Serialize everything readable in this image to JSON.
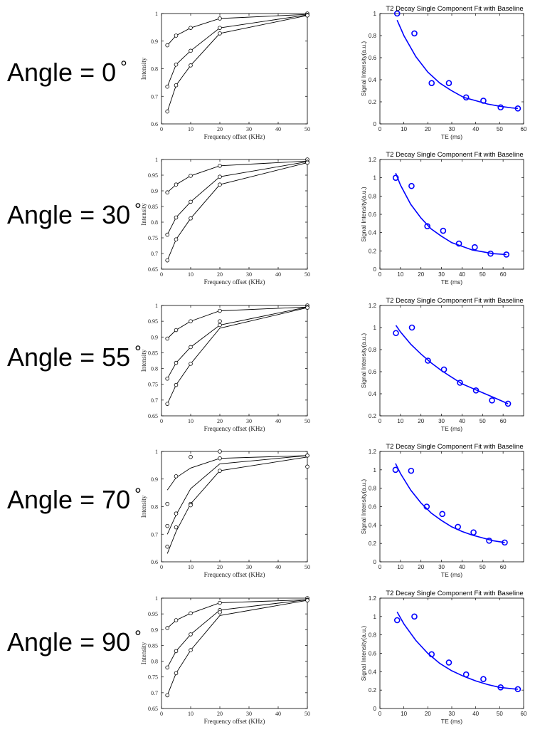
{
  "rows": [
    {
      "label": "Angle = 0",
      "degree_symbol": "°"
    },
    {
      "label": "Angle = 30",
      "degree_symbol": "°"
    },
    {
      "label": "Angle = 55",
      "degree_symbol": "°"
    },
    {
      "label": "Angle = 70",
      "degree_symbol": "°"
    },
    {
      "label": "Angle = 90",
      "degree_symbol": "°"
    }
  ],
  "colors": {
    "left_marker": "#000000",
    "right_marker": "#0000ff",
    "axis": "#000000"
  },
  "chart_data": [
    {
      "type": "line",
      "panel": "intensity-0",
      "xlabel": "Frequency offset (KHz)",
      "ylabel": "Intensity",
      "xlim": [
        0,
        50
      ],
      "ylim": [
        0.6,
        1
      ],
      "xticks": [
        0,
        10,
        20,
        30,
        40,
        50
      ],
      "xticklabels": [
        "0",
        "10",
        "20",
        "30",
        "40",
        "50"
      ],
      "yticks": [
        0.6,
        0.7,
        0.8,
        0.9,
        1
      ],
      "yticklabels": [
        "0.6",
        "0.7",
        "0.8",
        "0.9",
        "1"
      ],
      "series": [
        {
          "x": [
            2,
            5,
            10,
            20,
            50
          ],
          "points": [
            0.885,
            0.92,
            0.948,
            0.982,
            1.0
          ],
          "fit": [
            0.885,
            0.92,
            0.948,
            0.982,
            0.997
          ]
        },
        {
          "x": [
            2,
            5,
            10,
            20,
            50
          ],
          "points": [
            0.735,
            0.815,
            0.865,
            0.948,
            0.995
          ],
          "fit": [
            0.735,
            0.815,
            0.865,
            0.948,
            0.995
          ]
        },
        {
          "x": [
            2,
            5,
            10,
            20,
            50
          ],
          "points": [
            0.645,
            0.74,
            0.812,
            0.928,
            0.993
          ],
          "fit": [
            0.645,
            0.74,
            0.812,
            0.928,
            0.993
          ]
        }
      ]
    },
    {
      "type": "scatter",
      "panel": "t2-0",
      "title": "T2 Decay Single Component Fit with Baseline",
      "xlabel": "TE (ms)",
      "ylabel": "Signal Intensity(a.u.)",
      "xlim": [
        0,
        60
      ],
      "ylim": [
        0,
        1
      ],
      "xticks": [
        0,
        10,
        20,
        30,
        40,
        50,
        60
      ],
      "xticklabels": [
        "0",
        "10",
        "20",
        "30",
        "40",
        "50",
        "60"
      ],
      "yticks": [
        0,
        0.2,
        0.4,
        0.6,
        0.8,
        1
      ],
      "yticklabels": [
        "0",
        "0.2",
        "0.4",
        "0.6",
        "0.8",
        "1"
      ],
      "points": {
        "x": [
          7.2,
          14.4,
          21.6,
          28.8,
          36,
          43.2,
          50.4,
          57.6
        ],
        "y": [
          1.0,
          0.82,
          0.37,
          0.37,
          0.24,
          0.21,
          0.15,
          0.14
        ]
      },
      "fit": {
        "x": [
          7.2,
          10,
          15,
          20,
          25,
          30,
          35,
          40,
          45,
          50,
          55,
          57.6
        ],
        "y": [
          0.94,
          0.8,
          0.61,
          0.47,
          0.37,
          0.3,
          0.24,
          0.21,
          0.18,
          0.16,
          0.145,
          0.14
        ]
      }
    },
    {
      "type": "line",
      "panel": "intensity-30",
      "xlabel": "Frequency offset (KHz)",
      "ylabel": "Intensity",
      "xlim": [
        0,
        50
      ],
      "ylim": [
        0.65,
        1
      ],
      "xticks": [
        0,
        10,
        20,
        30,
        40,
        50
      ],
      "xticklabels": [
        "0",
        "10",
        "20",
        "30",
        "40",
        "50"
      ],
      "yticks": [
        0.65,
        0.7,
        0.75,
        0.8,
        0.85,
        0.9,
        0.95,
        1
      ],
      "yticklabels": [
        "0.65",
        "0.7",
        "0.75",
        "0.8",
        "0.85",
        "0.9",
        "0.95",
        "1"
      ],
      "series": [
        {
          "x": [
            2,
            5,
            10,
            20,
            50
          ],
          "points": [
            0.895,
            0.92,
            0.948,
            0.98,
            1.0
          ],
          "fit": [
            0.895,
            0.92,
            0.948,
            0.98,
            0.995
          ]
        },
        {
          "x": [
            2,
            5,
            10,
            20,
            50
          ],
          "points": [
            0.76,
            0.815,
            0.865,
            0.945,
            0.993
          ],
          "fit": [
            0.76,
            0.815,
            0.865,
            0.945,
            0.993
          ]
        },
        {
          "x": [
            2,
            5,
            10,
            20,
            50
          ],
          "points": [
            0.678,
            0.745,
            0.812,
            0.92,
            0.99
          ],
          "fit": [
            0.678,
            0.745,
            0.812,
            0.92,
            0.99
          ]
        }
      ]
    },
    {
      "type": "scatter",
      "panel": "t2-30",
      "title": "T2 Decay Single Component Fit with Baseline",
      "xlabel": "TE (ms)",
      "ylabel": "Signal Intensity(a.u.)",
      "xlim": [
        0,
        70
      ],
      "ylim": [
        0,
        1.2
      ],
      "xticks": [
        0,
        10,
        20,
        30,
        40,
        50,
        60
      ],
      "xticklabels": [
        "0",
        "10",
        "20",
        "30",
        "40",
        "50",
        "60"
      ],
      "yticks": [
        0,
        0.2,
        0.4,
        0.6,
        0.8,
        1,
        1.2
      ],
      "yticklabels": [
        "0",
        "0.2",
        "0.4",
        "0.6",
        "0.8",
        "1",
        "1.2"
      ],
      "points": {
        "x": [
          7.7,
          15.4,
          23.1,
          30.8,
          38.5,
          46.2,
          53.9,
          61.6
        ],
        "y": [
          1.0,
          0.91,
          0.47,
          0.42,
          0.28,
          0.24,
          0.17,
          0.16
        ]
      },
      "fit": {
        "x": [
          7.7,
          10,
          15,
          20,
          25,
          30,
          35,
          40,
          45,
          50,
          55,
          61.6
        ],
        "y": [
          1.05,
          0.92,
          0.71,
          0.56,
          0.44,
          0.36,
          0.29,
          0.25,
          0.21,
          0.19,
          0.17,
          0.16
        ]
      }
    },
    {
      "type": "line",
      "panel": "intensity-55",
      "xlabel": "Frequency offset (KHz)",
      "ylabel": "Intensity",
      "xlim": [
        0,
        50
      ],
      "ylim": [
        0.65,
        1
      ],
      "xticks": [
        0,
        10,
        20,
        30,
        40,
        50
      ],
      "xticklabels": [
        "0",
        "10",
        "20",
        "30",
        "40",
        "50"
      ],
      "yticks": [
        0.65,
        0.7,
        0.75,
        0.8,
        0.85,
        0.9,
        0.95,
        1
      ],
      "yticklabels": [
        "0.65",
        "0.7",
        "0.75",
        "0.8",
        "0.85",
        "0.9",
        "0.95",
        "1"
      ],
      "series": [
        {
          "x": [
            2,
            5,
            10,
            20,
            50
          ],
          "points": [
            0.895,
            0.922,
            0.95,
            0.983,
            1.0
          ],
          "fit": [
            0.895,
            0.922,
            0.95,
            0.983,
            0.995
          ]
        },
        {
          "x": [
            2,
            5,
            10,
            20,
            50
          ],
          "points": [
            0.768,
            0.818,
            0.868,
            0.95,
            0.995
          ],
          "fit": [
            0.768,
            0.818,
            0.868,
            0.938,
            0.995
          ]
        },
        {
          "x": [
            2,
            5,
            10,
            20,
            50
          ],
          "points": [
            0.688,
            0.748,
            0.815,
            0.938,
            0.993
          ],
          "fit": [
            0.688,
            0.748,
            0.815,
            0.928,
            0.993
          ]
        }
      ]
    },
    {
      "type": "scatter",
      "panel": "t2-55",
      "title": "T2 Decay Single Component Fit with Baseline",
      "xlabel": "TE (ms)",
      "ylabel": "Signal Intensity(a.u.)",
      "xlim": [
        0,
        70
      ],
      "ylim": [
        0.2,
        1.2
      ],
      "xticks": [
        0,
        10,
        20,
        30,
        40,
        50,
        60
      ],
      "xticklabels": [
        "0",
        "10",
        "20",
        "30",
        "40",
        "50",
        "60"
      ],
      "yticks": [
        0.2,
        0.4,
        0.6,
        0.8,
        1,
        1.2
      ],
      "yticklabels": [
        "0.2",
        "0.4",
        "0.6",
        "0.8",
        "1",
        "1.2"
      ],
      "points": {
        "x": [
          7.8,
          15.6,
          23.4,
          31.2,
          39,
          46.8,
          54.6,
          62.4
        ],
        "y": [
          0.95,
          1.0,
          0.7,
          0.62,
          0.5,
          0.43,
          0.34,
          0.31
        ]
      },
      "fit": {
        "x": [
          7.8,
          10,
          15,
          20,
          25,
          30,
          35,
          40,
          45,
          50,
          55,
          62.4
        ],
        "y": [
          1.02,
          0.96,
          0.85,
          0.76,
          0.68,
          0.61,
          0.55,
          0.49,
          0.45,
          0.41,
          0.37,
          0.31
        ]
      }
    },
    {
      "type": "line",
      "panel": "intensity-70",
      "xlabel": "Frequency offset (KHz)",
      "ylabel": "Intensity",
      "xlim": [
        0,
        50
      ],
      "ylim": [
        0.6,
        1
      ],
      "xticks": [
        0,
        10,
        20,
        30,
        40,
        50
      ],
      "xticklabels": [
        "0",
        "10",
        "20",
        "30",
        "40",
        "50"
      ],
      "yticks": [
        0.6,
        0.7,
        0.8,
        0.9,
        1
      ],
      "yticklabels": [
        "0.6",
        "0.7",
        "0.8",
        "0.9",
        "1"
      ],
      "series": [
        {
          "x": [
            2,
            5,
            10,
            20,
            50
          ],
          "points": [
            0.81,
            0.91,
            0.98,
            1.0,
            0.985
          ],
          "fit": [
            0.86,
            0.905,
            0.94,
            0.975,
            0.985
          ]
        },
        {
          "x": [
            2,
            5,
            10,
            20,
            50
          ],
          "points": [
            0.73,
            0.775,
            0.81,
            0.975,
            0.985
          ],
          "fit": [
            0.7,
            0.77,
            0.865,
            0.955,
            0.985
          ]
        },
        {
          "x": [
            2,
            5,
            10,
            20,
            50
          ],
          "points": [
            0.655,
            0.725,
            0.805,
            0.93,
            0.945
          ],
          "fit": [
            0.63,
            0.71,
            0.81,
            0.93,
            0.98
          ]
        }
      ]
    },
    {
      "type": "scatter",
      "panel": "t2-70",
      "title": "T2 Decay Single Component Fit with Baseline",
      "xlabel": "TE (ms)",
      "ylabel": "Signal Intensity(a.u.)",
      "xlim": [
        0,
        70
      ],
      "ylim": [
        0,
        1.2
      ],
      "xticks": [
        0,
        10,
        20,
        30,
        40,
        50,
        60
      ],
      "xticklabels": [
        "0",
        "10",
        "20",
        "30",
        "40",
        "50",
        "60"
      ],
      "yticks": [
        0,
        0.2,
        0.4,
        0.6,
        0.8,
        1,
        1.2
      ],
      "yticklabels": [
        "0",
        "0.2",
        "0.4",
        "0.6",
        "0.8",
        "1",
        "1.2"
      ],
      "points": {
        "x": [
          7.6,
          15.2,
          22.8,
          30.4,
          38,
          45.6,
          53.2,
          60.8
        ],
        "y": [
          1.0,
          0.99,
          0.6,
          0.52,
          0.38,
          0.32,
          0.23,
          0.21
        ]
      },
      "fit": {
        "x": [
          7.6,
          10,
          15,
          20,
          25,
          30,
          35,
          40,
          45,
          50,
          55,
          60.8
        ],
        "y": [
          1.07,
          0.96,
          0.78,
          0.64,
          0.53,
          0.45,
          0.38,
          0.33,
          0.29,
          0.26,
          0.23,
          0.21
        ]
      }
    },
    {
      "type": "line",
      "panel": "intensity-90",
      "xlabel": "Frequency offset (KHz)",
      "ylabel": "Intensity",
      "xlim": [
        0,
        50
      ],
      "ylim": [
        0.65,
        1
      ],
      "xticks": [
        0,
        10,
        20,
        30,
        40,
        50
      ],
      "xticklabels": [
        "0",
        "10",
        "20",
        "30",
        "40",
        "50"
      ],
      "yticks": [
        0.65,
        0.7,
        0.75,
        0.8,
        0.85,
        0.9,
        0.95,
        1
      ],
      "yticklabels": [
        "0.65",
        "0.7",
        "0.75",
        "0.8",
        "0.85",
        "0.9",
        "0.95",
        "1"
      ],
      "series": [
        {
          "x": [
            2,
            5,
            10,
            20,
            50
          ],
          "points": [
            0.905,
            0.93,
            0.952,
            0.985,
            1.0
          ],
          "fit": [
            0.905,
            0.93,
            0.952,
            0.985,
            0.995
          ]
        },
        {
          "x": [
            2,
            5,
            10,
            20,
            50
          ],
          "points": [
            0.78,
            0.832,
            0.885,
            0.962,
            0.995
          ],
          "fit": [
            0.78,
            0.832,
            0.885,
            0.962,
            0.995
          ]
        },
        {
          "x": [
            2,
            5,
            10,
            20,
            50
          ],
          "points": [
            0.692,
            0.762,
            0.835,
            0.955,
            0.993
          ],
          "fit": [
            0.692,
            0.762,
            0.835,
            0.945,
            0.993
          ]
        }
      ]
    },
    {
      "type": "scatter",
      "panel": "t2-90",
      "title": "T2 Decay Single Component Fit with Baseline",
      "xlabel": "TE (ms)",
      "ylabel": "Signal Intensity(a.u.)",
      "xlim": [
        0,
        60
      ],
      "ylim": [
        0,
        1.2
      ],
      "xticks": [
        0,
        10,
        20,
        30,
        40,
        50,
        60
      ],
      "xticklabels": [
        "0",
        "10",
        "20",
        "30",
        "40",
        "50",
        "60"
      ],
      "yticks": [
        0,
        0.2,
        0.4,
        0.6,
        0.8,
        1,
        1.2
      ],
      "yticklabels": [
        "0",
        "0.2",
        "0.4",
        "0.6",
        "0.8",
        "1",
        "1.2"
      ],
      "points": {
        "x": [
          7.2,
          14.4,
          21.6,
          28.8,
          36,
          43.2,
          50.4,
          57.6
        ],
        "y": [
          0.96,
          1.0,
          0.59,
          0.5,
          0.37,
          0.32,
          0.23,
          0.21
        ]
      },
      "fit": {
        "x": [
          7.2,
          10,
          15,
          20,
          25,
          30,
          35,
          40,
          45,
          50,
          55,
          57.6
        ],
        "y": [
          1.05,
          0.92,
          0.74,
          0.6,
          0.49,
          0.41,
          0.35,
          0.3,
          0.26,
          0.23,
          0.215,
          0.21
        ]
      }
    }
  ]
}
